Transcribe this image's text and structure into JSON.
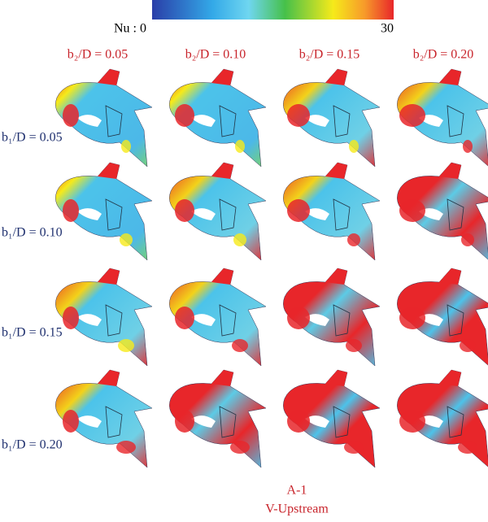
{
  "colorbar": {
    "min_label": "Nu : 0",
    "max_label": "30"
  },
  "columns": [
    "b₂/D = 0.05",
    "b₂/D = 0.10",
    "b₂/D = 0.15",
    "b₂/D = 0.20"
  ],
  "rows": [
    "b₁/D = 0.05",
    "b₁/D = 0.10",
    "b₁/D = 0.15",
    "b₁/D = 0.20"
  ],
  "caption": {
    "line1": "A-1",
    "line2": "V-Upstream"
  }
}
